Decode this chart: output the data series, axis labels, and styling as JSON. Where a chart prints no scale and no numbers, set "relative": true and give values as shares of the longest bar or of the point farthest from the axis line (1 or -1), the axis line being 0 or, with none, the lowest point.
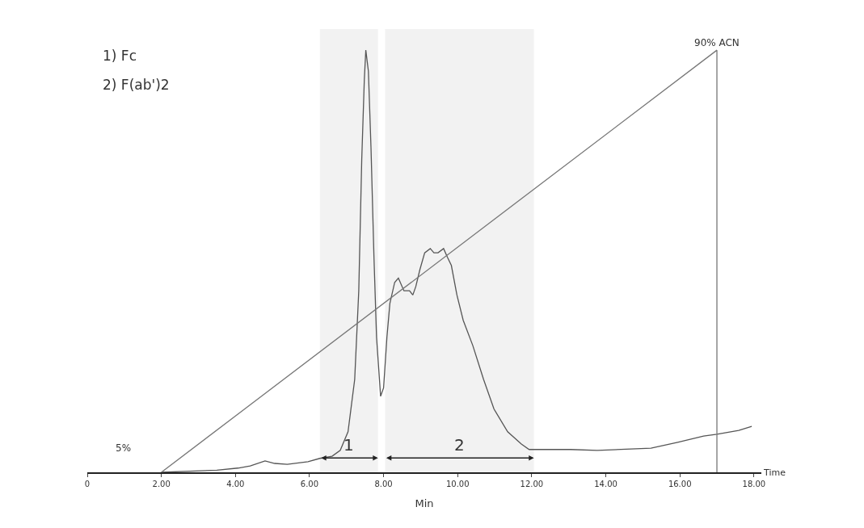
{
  "chart_data": {
    "type": "line",
    "relative": true,
    "xlabel": "Min",
    "tick_labels": "x",
    "grid": false,
    "marker": "none",
    "line_style": "solid",
    "xlim": [
      0,
      18.2
    ],
    "xticks": [
      0,
      {
        "value": 2,
        "label": "2.00"
      },
      {
        "value": 4,
        "label": "4.00"
      },
      {
        "value": 6,
        "label": "6.00"
      },
      {
        "value": 8,
        "label": "8.00"
      },
      {
        "value": 10,
        "label": "10.00"
      },
      {
        "value": 12,
        "label": "12.00"
      },
      {
        "value": 14,
        "label": "14.00"
      },
      {
        "value": 16,
        "label": "16.00"
      },
      {
        "value": 18,
        "label": "18.00"
      }
    ],
    "series": [
      {
        "color": "#555555",
        "x": [
          2.0,
          3.5,
          4.07,
          4.4,
          4.8,
          5.06,
          5.4,
          5.96,
          6.28,
          6.61,
          6.83,
          7.04,
          7.22,
          7.33,
          7.41,
          7.48,
          7.52,
          7.59,
          7.66,
          7.74,
          7.81,
          7.92,
          8.0,
          8.09,
          8.17,
          8.3,
          8.4,
          8.55,
          8.7,
          8.79,
          8.87,
          8.98,
          9.11,
          9.26,
          9.36,
          9.47,
          9.62,
          9.72,
          9.83,
          9.98,
          10.15,
          10.41,
          10.7,
          10.98,
          11.35,
          11.72,
          11.93,
          13.05,
          13.77,
          15.22,
          15.94,
          16.64,
          17.0,
          17.59,
          17.94
        ],
        "values": [
          0.0,
          0.005,
          0.01,
          0.015,
          0.027,
          0.021,
          0.019,
          0.025,
          0.033,
          0.038,
          0.052,
          0.096,
          0.22,
          0.43,
          0.74,
          0.93,
          1.0,
          0.95,
          0.77,
          0.51,
          0.32,
          0.18,
          0.2,
          0.32,
          0.4,
          0.45,
          0.46,
          0.43,
          0.43,
          0.42,
          0.44,
          0.48,
          0.52,
          0.53,
          0.52,
          0.52,
          0.53,
          0.51,
          0.49,
          0.42,
          0.36,
          0.3,
          0.22,
          0.15,
          0.096,
          0.067,
          0.054,
          0.054,
          0.052,
          0.057,
          0.071,
          0.086,
          0.09,
          0.099,
          0.109
        ]
      },
      {
        "color": "#777777",
        "x": [
          2.0,
          17.0,
          17.0
        ],
        "values": [
          0.0,
          1.0,
          0.0
        ]
      }
    ],
    "bands": [
      {
        "axis": "x",
        "from": 6.28,
        "to": 7.85,
        "label": "1",
        "color": "#222222"
      },
      {
        "axis": "x",
        "from": 8.04,
        "to": 12.06,
        "label": "2",
        "color": "#222222"
      }
    ],
    "annotations": [
      "1) Fc",
      "2) F(ab')2",
      "Time",
      "5%",
      {
        "text": "90% ACN",
        "x": 17.0,
        "y": 1.0
      }
    ]
  }
}
